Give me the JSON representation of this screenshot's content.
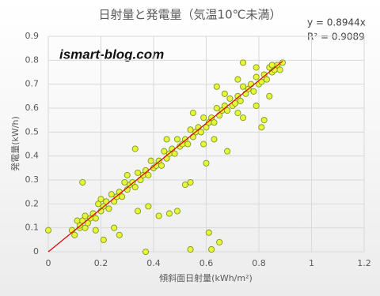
{
  "chart_data": {
    "type": "scatter",
    "title": "日射量と発電量（気温10℃未満）",
    "x_label": "傾斜面日射量(kWh/m²)",
    "y_label": "発電量(kW/h)",
    "watermark": "ismart-blog.com",
    "equation": "y = 0.8944x",
    "r_squared": "R² = 0.9089",
    "trendline": {
      "slope": 0.8944,
      "color": "#e00000"
    },
    "color": "#e8f53a",
    "edge_color": "#7a9a20",
    "grid": true,
    "xlim": [
      0,
      1.2
    ],
    "xticks": [
      0,
      0.2,
      0.4,
      0.6,
      0.8,
      1,
      1.2
    ],
    "ylim": [
      0,
      0.9
    ],
    "yticks": [
      0,
      0.1,
      0.2,
      0.3,
      0.4,
      0.5,
      0.6,
      0.7,
      0.8,
      0.9
    ],
    "x": [
      0.09,
      0.1,
      0.11,
      0.12,
      0.12,
      0.13,
      0.14,
      0.14,
      0.15,
      0.16,
      0.17,
      0.18,
      0.19,
      0.2,
      0.21,
      0.22,
      0.23,
      0.24,
      0.25,
      0.26,
      0.27,
      0.28,
      0.29,
      0.3,
      0.31,
      0.32,
      0.33,
      0.34,
      0.35,
      0.36,
      0.37,
      0.38,
      0.39,
      0.4,
      0.41,
      0.42,
      0.43,
      0.44,
      0.45,
      0.46,
      0.47,
      0.48,
      0.49,
      0.5,
      0.51,
      0.52,
      0.53,
      0.54,
      0.55,
      0.56,
      0.57,
      0.58,
      0.59,
      0.6,
      0.61,
      0.62,
      0.63,
      0.64,
      0.65,
      0.66,
      0.67,
      0.68,
      0.69,
      0.7,
      0.71,
      0.72,
      0.73,
      0.74,
      0.75,
      0.76,
      0.77,
      0.78,
      0.79,
      0.8,
      0.81,
      0.82,
      0.83,
      0.84,
      0.85,
      0.86,
      0.87,
      0.88,
      0.89,
      0.74,
      0.79,
      0.72,
      0.64,
      0.67,
      0.55,
      0.45,
      0.3,
      0.2,
      0.85,
      0,
      0.13,
      0.18,
      0.21,
      0.25,
      0.27,
      0.33,
      0.34,
      0.37,
      0.38,
      0.42,
      0.46,
      0.49,
      0.52,
      0.54,
      0.54,
      0.61,
      0.62,
      0.65,
      0.59,
      0.6,
      0.63,
      0.81,
      0.82,
      0.79,
      0.84,
      0.74,
      0.72,
      0.68
    ],
    "values": [
      0.09,
      0.07,
      0.13,
      0.1,
      0.11,
      0.13,
      0.1,
      0.15,
      0.12,
      0.14,
      0.16,
      0.14,
      0.2,
      0.17,
      0.19,
      0.21,
      0.18,
      0.24,
      0.21,
      0.23,
      0.25,
      0.23,
      0.29,
      0.26,
      0.28,
      0.29,
      0.27,
      0.33,
      0.3,
      0.32,
      0.34,
      0.32,
      0.38,
      0.35,
      0.36,
      0.38,
      0.36,
      0.42,
      0.39,
      0.41,
      0.43,
      0.41,
      0.47,
      0.44,
      0.45,
      0.47,
      0.45,
      0.51,
      0.48,
      0.5,
      0.52,
      0.5,
      0.56,
      0.52,
      0.54,
      0.56,
      0.54,
      0.6,
      0.57,
      0.59,
      0.61,
      0.59,
      0.64,
      0.61,
      0.62,
      0.65,
      0.63,
      0.69,
      0.66,
      0.68,
      0.7,
      0.67,
      0.73,
      0.7,
      0.71,
      0.74,
      0.72,
      0.77,
      0.75,
      0.76,
      0.78,
      0.76,
      0.79,
      0.79,
      0.77,
      0.72,
      0.69,
      0.66,
      0.58,
      0.47,
      0.32,
      0.22,
      0.78,
      0.09,
      0.29,
      0.09,
      0.05,
      0.1,
      0.07,
      0.43,
      0.17,
      0,
      0.19,
      0.15,
      0.16,
      0.17,
      0.28,
      0.29,
      0.01,
      0.08,
      0.01,
      0.04,
      0.45,
      0.37,
      0.47,
      0.52,
      0.55,
      0.61,
      0.65,
      0.56,
      0.58,
      0.42
    ]
  }
}
